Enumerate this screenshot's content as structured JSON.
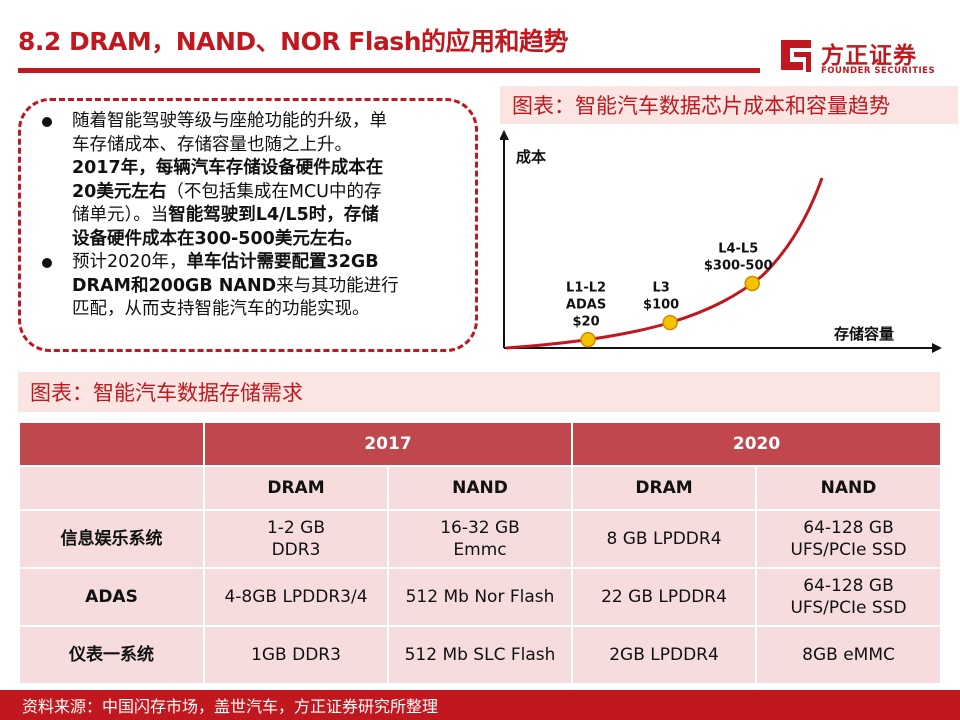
{
  "header": {
    "title": "8.2 DRAM，NAND、NOR Flash的应用和趋势",
    "logo_cn": "方正证券",
    "logo_en": "FOUNDER SECURITIES"
  },
  "bullets": {
    "b1_l1": "随着智能驾驶等级与座舱功能的升级，单",
    "b1_l2": "车存储成本、存储容量也随之上升。",
    "b1_l3": "2017年，每辆汽车存储设备硬件成本在",
    "b1_l4_bold": "20美元左右",
    "b1_l4_rest": "（不包括集成在MCU中的存",
    "b1_l5_start": "储单元）。当",
    "b1_l5_bold": "智能驾驶到L4/L5时，存储",
    "b1_l6": "设备硬件成本在300-500美元左右。",
    "b2_l1_start": "预计2020年，",
    "b2_l1_bold": "单车估计需要配置32GB",
    "b2_l2_bold": "DRAM和200GB NAND",
    "b2_l2_rest": "来与其功能进行",
    "b2_l3": "匹配，从而支持智能汽车的功能实现。"
  },
  "chart_caption": "图表：智能汽车数据芯片成本和容量趋势",
  "chart_data": {
    "type": "line",
    "ylabel": "成本",
    "xlabel": "存储容量",
    "grid": false,
    "legend": "none",
    "points": [
      {
        "x": 1,
        "y": 20,
        "label_l1": "L1-L2",
        "label_l2": "ADAS",
        "label_l3": "$20"
      },
      {
        "x": 2,
        "y": 100,
        "label_l1": "L3",
        "label_l2": "$100"
      },
      {
        "x": 3,
        "y": 400,
        "label_l1": "L4-L5",
        "label_l2": "$300-500"
      }
    ],
    "colors": {
      "curve": "#c0181e",
      "marker_fill": "#f5c200",
      "marker_stroke": "#d08a00",
      "axis": "#111111"
    }
  },
  "table_caption": "图表：智能汽车数据存储需求",
  "table": {
    "years": [
      "2017",
      "2020"
    ],
    "types": [
      "DRAM",
      "NAND",
      "DRAM",
      "NAND"
    ],
    "rows": [
      {
        "name": "信息娱乐系统",
        "c1_l1": "1-2 GB",
        "c1_l2": "DDR3",
        "c2_l1": "16-32 GB",
        "c2_l2": "Emmc",
        "c3": "8 GB LPDDR4",
        "c4_l1": "64-128 GB",
        "c4_l2": "UFS/PCIe SSD"
      },
      {
        "name": "ADAS",
        "c1": "4-8GB LPDDR3/4",
        "c2": "512 Mb Nor Flash",
        "c3": "22 GB LPDDR4",
        "c4_l1": "64-128 GB",
        "c4_l2": "UFS/PCIe SSD"
      },
      {
        "name": "仪表一系统",
        "c1": "1GB DDR3",
        "c2": "512 Mb SLC Flash",
        "c3": "2GB LPDDR4",
        "c4": "8GB eMMC"
      }
    ]
  },
  "footer": {
    "source": "资料来源：中国闪存市场，盖世汽车，方正证券研究所整理"
  },
  "colors": {
    "brand_red": "#c0181e",
    "table_header": "#c0474e",
    "table_body": "#f6dcdc",
    "caption_bg": "#fbe5e2"
  }
}
